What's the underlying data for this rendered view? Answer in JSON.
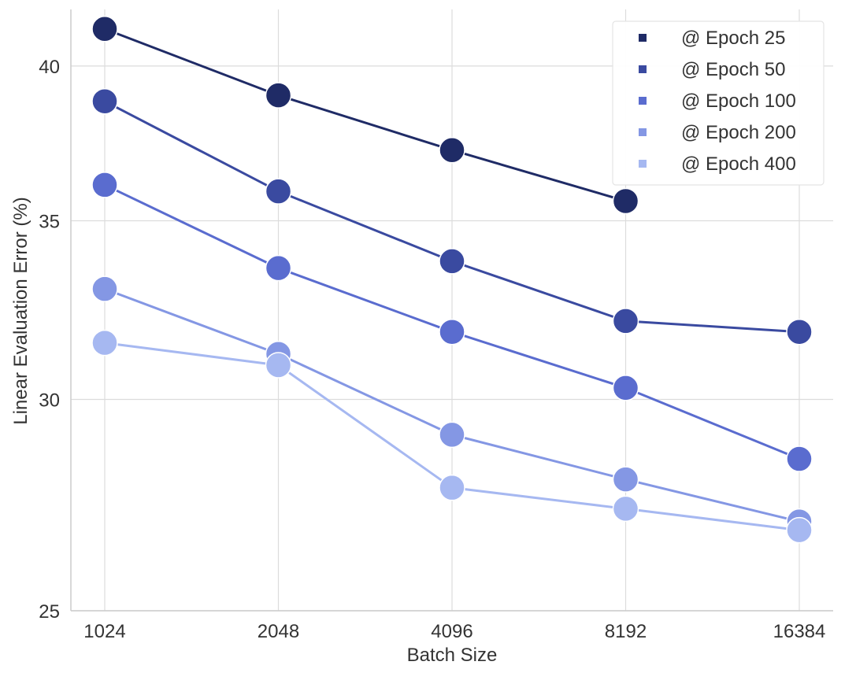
{
  "chart_data": {
    "type": "line",
    "title": "",
    "xlabel": "Batch Size",
    "ylabel": "Linear Evaluation Error (%)",
    "categories": [
      "1024",
      "2048",
      "4096",
      "8192",
      "16384"
    ],
    "ylim": [
      25,
      42
    ],
    "yscale": "log",
    "yticks": [
      25,
      30,
      35,
      40
    ],
    "grid": true,
    "legend_position": "top-right",
    "series": [
      {
        "name": "@ Epoch 25",
        "color": "#1f2b66",
        "values": [
          41.3,
          39.0,
          37.2,
          35.6,
          null
        ]
      },
      {
        "name": "@ Epoch 50",
        "color": "#3a4aa0",
        "values": [
          38.8,
          35.9,
          33.8,
          32.1,
          31.8
        ]
      },
      {
        "name": "@ Epoch 100",
        "color": "#5a6ccf",
        "values": [
          36.1,
          33.6,
          31.8,
          30.3,
          28.5
        ]
      },
      {
        "name": "@ Epoch 200",
        "color": "#8497e4",
        "values": [
          33.0,
          31.2,
          29.1,
          28.0,
          27.0
        ]
      },
      {
        "name": "@ Epoch 400",
        "color": "#a6b8f1",
        "values": [
          31.5,
          30.9,
          27.8,
          27.3,
          26.8
        ]
      }
    ]
  }
}
